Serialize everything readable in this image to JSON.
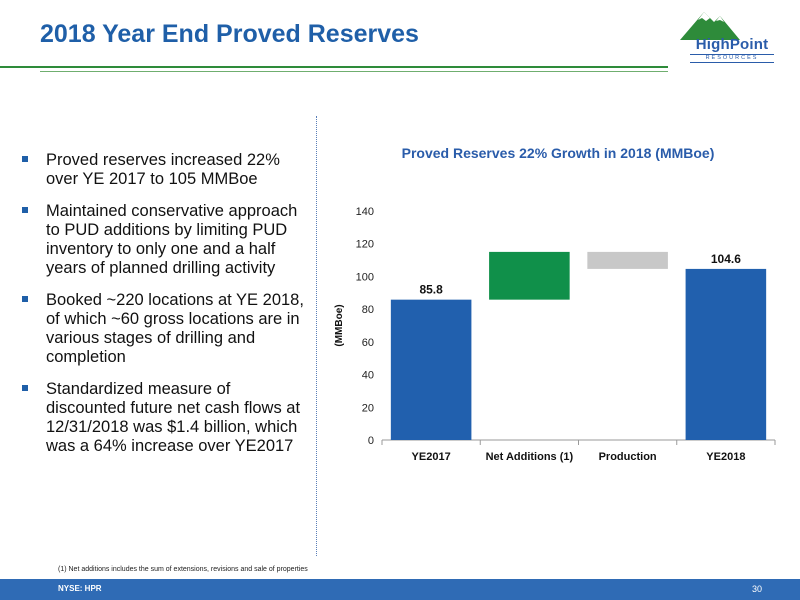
{
  "header": {
    "title": "2018 Year End Proved Reserves"
  },
  "logo": {
    "name": "HighPoint",
    "sub": "RESOURCES"
  },
  "bullets": [
    "Proved reserves increased 22% over YE 2017 to 105 MMBoe",
    "Maintained conservative approach to PUD additions by limiting PUD inventory to only one and a half years of planned drilling activity",
    "Booked ~220 locations at YE 2018, of which ~60 gross locations are in various stages of drilling and completion",
    "Standardized measure of discounted future net cash flows at 12/31/2018 was $1.4 billion, which was a 64% increase over YE2017"
  ],
  "chart_data": {
    "type": "bar",
    "subtype": "waterfall",
    "title": "Proved Reserves 22% Growth in 2018 (MMBoe)",
    "ylabel": "(MMBoe)",
    "xlabel": "",
    "ylim": [
      0,
      140
    ],
    "yticks": [
      "0",
      "20",
      "40",
      "60",
      "80",
      "100",
      "120",
      "140"
    ],
    "categories": [
      "YE2017",
      "Net Additions (1)",
      "Production",
      "YE2018"
    ],
    "bars": [
      {
        "start": 0,
        "end": 85.8,
        "label": "85.8",
        "color": "#2160ae"
      },
      {
        "start": 85.8,
        "end": 115.0,
        "label": "",
        "color": "#10904a"
      },
      {
        "start": 115.0,
        "end": 104.6,
        "label": "",
        "color": "#c8c8c8"
      },
      {
        "start": 0,
        "end": 104.6,
        "label": "104.6",
        "color": "#2160ae"
      }
    ],
    "grid": false
  },
  "footnote": "(1) Net additions includes the sum of extensions, revisions and sale of properties",
  "footer": {
    "ticker": "NYSE: HPR",
    "page": "30"
  }
}
